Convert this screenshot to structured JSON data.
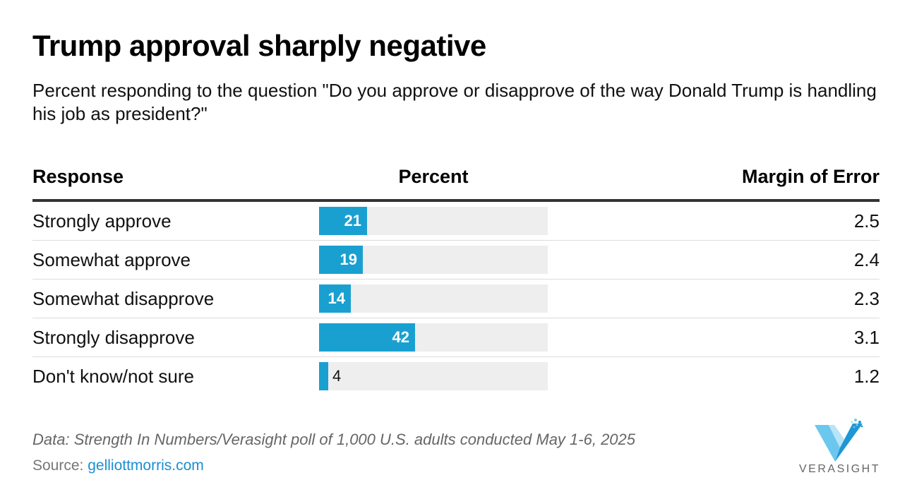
{
  "chart_data": {
    "type": "table",
    "title": "Trump approval sharply negative",
    "subtitle": "Percent responding to the question \"Do you approve or disapprove of the way Donald Trump is handling his job as president?\"",
    "columns": [
      "Response",
      "Percent",
      "Margin of Error"
    ],
    "categories": [
      "Strongly approve",
      "Somewhat approve",
      "Somewhat disapprove",
      "Strongly disapprove",
      "Don't know/not sure"
    ],
    "values": [
      21,
      19,
      14,
      42,
      4
    ],
    "margin_of_error": [
      "2.5",
      "2.4",
      "2.3",
      "3.1",
      "1.2"
    ],
    "percent_scale_max": 100,
    "bar_color": "#1aa0d0",
    "track_color": "#eeeeee",
    "grid": false,
    "legend": "none"
  },
  "footer": {
    "note": "Data: Strength In Numbers/Verasight poll of 1,000 U.S. adults conducted May 1-6, 2025",
    "source_label": "Source:",
    "source_link": "gelliottmorris.com"
  },
  "logo": {
    "text": "VERASIGHT",
    "icon": "verasight-v-icon",
    "color": "#2aa7de"
  },
  "colors": {
    "link": "#1a8fd1",
    "header_rule": "#333333"
  }
}
